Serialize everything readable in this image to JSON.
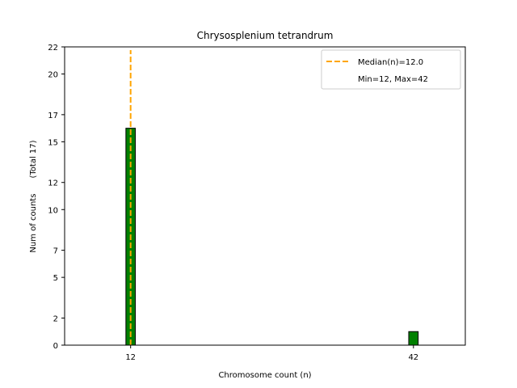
{
  "chart_data": {
    "type": "bar",
    "title": "Chrysosplenium tetrandrum",
    "xlabel": "Chromosome count (n)",
    "ylabel": "Num of counts      (Total 17)",
    "xlim": [
      5,
      47.5
    ],
    "ylim": [
      0,
      22
    ],
    "x_ticks": [
      12,
      42
    ],
    "y_ticks": [
      0,
      2,
      5,
      7,
      10,
      12,
      15,
      17,
      20,
      22
    ],
    "bars": [
      {
        "x": 12,
        "value": 16,
        "width": 1
      },
      {
        "x": 42,
        "value": 1,
        "width": 1
      }
    ],
    "bar_color": "#008000",
    "median": {
      "value": 12.0,
      "color": "#FFA500",
      "label": "Median(n)=12.0"
    },
    "legend": {
      "position": "top-right",
      "entries": [
        "Median(n)=12.0",
        "Min=12, Max=42"
      ]
    }
  }
}
